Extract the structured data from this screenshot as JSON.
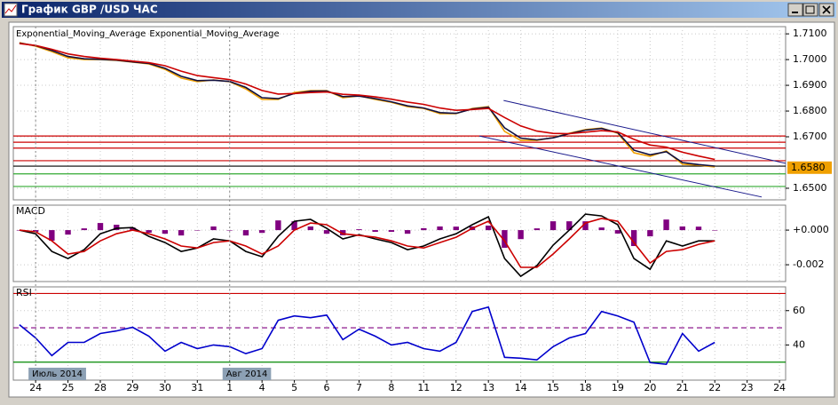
{
  "window": {
    "title": "График GBP /USD ЧАС"
  },
  "chart_data": [
    {
      "type": "line",
      "x": [
        -0.5,
        0,
        0.5,
        1,
        1.5,
        2,
        2.5,
        3,
        3.5,
        4,
        4.5,
        5,
        5.5,
        6,
        6.5,
        7,
        7.5,
        8,
        8.5,
        9,
        9.5,
        10,
        10.5,
        11,
        11.5,
        12,
        12.5,
        13,
        13.5,
        14,
        14.5,
        15,
        15.5,
        16,
        16.5,
        17,
        17.5,
        18,
        18.5,
        19,
        19.5,
        20,
        20.5,
        21
      ],
      "xlim": [
        -0.69,
        23.19
      ],
      "ylim": [
        1.6455,
        1.7128
      ],
      "yticks": [
        {
          "value": 1.71,
          "label": "1.7100"
        },
        {
          "value": 1.7,
          "label": "1.7000"
        },
        {
          "value": 1.69,
          "label": "1.6900"
        },
        {
          "value": 1.68,
          "label": "1.6800"
        },
        {
          "value": 1.67,
          "label": "1.6700"
        },
        {
          "value": 1.65,
          "label": "1.6500"
        }
      ],
      "grid": true,
      "series": [
        {
          "color": "#f0a000",
          "values": [
            1.7066,
            1.7052,
            1.7031,
            1.7007,
            1.7,
            1.7,
            1.6997,
            1.699,
            1.6983,
            1.6962,
            1.6928,
            1.6914,
            1.6921,
            1.6914,
            1.6886,
            1.6845,
            1.6845,
            1.6872,
            1.6879,
            1.6879,
            1.6852,
            1.6859,
            1.6845,
            1.6834,
            1.6817,
            1.681,
            1.679,
            1.679,
            1.681,
            1.6817,
            1.6721,
            1.6686,
            1.6686,
            1.6697,
            1.6714,
            1.6728,
            1.6734,
            1.6714,
            1.6638,
            1.6624,
            1.6645,
            1.6593,
            1.659,
            1.6583
          ]
        },
        {
          "name": "Exponential_Moving_Average",
          "color": "#101040",
          "values": [
            1.7064,
            1.7054,
            1.7035,
            1.7012,
            1.7003,
            1.7001,
            1.6998,
            1.6991,
            1.6985,
            1.6966,
            1.6935,
            1.6918,
            1.692,
            1.6915,
            1.6892,
            1.6852,
            1.6848,
            1.6868,
            1.6877,
            1.6878,
            1.6856,
            1.6858,
            1.6848,
            1.6836,
            1.682,
            1.6812,
            1.6794,
            1.6791,
            1.6808,
            1.6815,
            1.6735,
            1.6695,
            1.6688,
            1.6696,
            1.6712,
            1.6726,
            1.6732,
            1.6716,
            1.6648,
            1.663,
            1.6642,
            1.66,
            1.6592,
            1.6586
          ]
        },
        {
          "name": "Exponential_Moving_Average",
          "color": "#cc0000",
          "values": [
            1.7062,
            1.7055,
            1.704,
            1.7022,
            1.7012,
            1.7005,
            1.7,
            1.6994,
            1.6988,
            1.6976,
            1.6955,
            1.6938,
            1.693,
            1.6922,
            1.6905,
            1.688,
            1.6866,
            1.6868,
            1.6872,
            1.6874,
            1.6865,
            1.6862,
            1.6855,
            1.6846,
            1.6835,
            1.6826,
            1.6812,
            1.6803,
            1.6806,
            1.681,
            1.6775,
            1.6742,
            1.6722,
            1.6713,
            1.6712,
            1.6718,
            1.6724,
            1.6719,
            1.669,
            1.6668,
            1.666,
            1.664,
            1.6625,
            1.6612
          ]
        }
      ],
      "levels": [
        {
          "value": 1.6703,
          "color": "#cc0000"
        },
        {
          "value": 1.6679,
          "color": "#cc0000"
        },
        {
          "value": 1.6656,
          "color": "#cc0000"
        },
        {
          "value": 1.6607,
          "color": "#cc0000"
        },
        {
          "value": 1.6586,
          "color": "#000000"
        },
        {
          "value": 1.6556,
          "color": "#33aa33"
        },
        {
          "value": 1.6507,
          "color": "#33aa33"
        }
      ],
      "trendlines": [
        {
          "x": [
            14.47,
            23.19
          ],
          "values": [
            1.6841,
            1.6597
          ],
          "color": "#1a1a8c"
        },
        {
          "x": [
            13.72,
            22.45
          ],
          "values": [
            1.6703,
            1.6466
          ],
          "color": "#1a1a8c"
        }
      ],
      "last_price": {
        "value": 1.658,
        "label": "1.6580",
        "color": "#f0a000"
      }
    },
    {
      "type": "line",
      "title": "MACD",
      "x": [
        -0.5,
        0,
        0.5,
        1,
        1.5,
        2,
        2.5,
        3,
        3.5,
        4,
        4.5,
        5,
        5.5,
        6,
        6.5,
        7,
        7.5,
        8,
        8.5,
        9,
        9.5,
        10,
        10.5,
        11,
        11.5,
        12,
        12.5,
        13,
        13.5,
        14,
        14.5,
        15,
        15.5,
        16,
        16.5,
        17,
        17.5,
        18,
        18.5,
        19,
        19.5,
        20,
        20.5,
        21
      ],
      "xlim": [
        -0.69,
        23.19
      ],
      "ylim": [
        -0.00297,
        0.00144
      ],
      "yticks": [
        {
          "value": 0,
          "label": "+0.000"
        },
        {
          "value": -0.002,
          "label": "-0.002"
        }
      ],
      "grid": true,
      "series": [
        {
          "type": "bar",
          "color": "#800080",
          "values": [
            0,
            -0.00011,
            -0.00061,
            -0.00026,
            0.0001,
            0.00041,
            0.00031,
            0.00015,
            -0.00015,
            -0.00021,
            -0.00031,
            0,
            0.00021,
            0,
            -0.00031,
            -0.00016,
            0.00056,
            0.00051,
            0.00021,
            -0.00021,
            -0.0003,
            5e-05,
            -0.0001,
            -0.0001,
            -0.00021,
            0.00011,
            0.00021,
            0.0002,
            0.00021,
            0.00026,
            -0.00102,
            -0.00052,
            0.0001,
            0.00051,
            0.00051,
            0.00051,
            0.00015,
            -0.0002,
            -0.00092,
            -0.00036,
            0.00061,
            0.00021,
            0.0002,
            0
          ]
        },
        {
          "color": "#000000",
          "values": [
            0,
            -0.00021,
            -0.00123,
            -0.00164,
            -0.00113,
            -0.00021,
            0.0001,
            0.00015,
            -0.00036,
            -0.00072,
            -0.00123,
            -0.00103,
            -0.00051,
            -0.00062,
            -0.00123,
            -0.00154,
            -0.00036,
            0.00051,
            0.00062,
            0.0001,
            -0.00051,
            -0.00026,
            -0.00051,
            -0.00072,
            -0.00113,
            -0.00092,
            -0.00051,
            -0.00021,
            0.00031,
            0.00077,
            -0.00164,
            -0.00267,
            -0.00205,
            -0.00087,
            0,
            0.00092,
            0.00082,
            0.00031,
            -0.00164,
            -0.00226,
            -0.00062,
            -0.00092,
            -0.00062,
            -0.00062
          ]
        },
        {
          "color": "#cc0000",
          "values": [
            0,
            -0.0001,
            -0.00062,
            -0.00138,
            -0.00123,
            -0.00062,
            -0.00021,
            0,
            -0.00021,
            -0.00051,
            -0.00092,
            -0.00103,
            -0.00072,
            -0.00062,
            -0.00092,
            -0.00138,
            -0.00092,
            0,
            0.00041,
            0.00031,
            -0.00021,
            -0.00031,
            -0.00041,
            -0.00062,
            -0.00092,
            -0.00103,
            -0.00072,
            -0.00041,
            0.0001,
            0.00051,
            -0.00062,
            -0.00215,
            -0.00215,
            -0.00138,
            -0.00051,
            0.00041,
            0.00067,
            0.00051,
            -0.00072,
            -0.0019,
            -0.00123,
            -0.00113,
            -0.00082,
            -0.00062
          ]
        }
      ]
    },
    {
      "type": "line",
      "title": "RSI",
      "x": [
        -0.5,
        0,
        0.5,
        1,
        1.5,
        2,
        2.5,
        3,
        3.5,
        4,
        4.5,
        5,
        5.5,
        6,
        6.5,
        7,
        7.5,
        8,
        8.5,
        9,
        9.5,
        10,
        10.5,
        11,
        11.5,
        12,
        12.5,
        13,
        13.5,
        14,
        14.5,
        15,
        15.5,
        16,
        16.5,
        17,
        17.5,
        18,
        18.5,
        19,
        19.5,
        20,
        20.5,
        21
      ],
      "xlim": [
        -0.69,
        23.19
      ],
      "ylim": [
        19.5,
        73.85
      ],
      "yticks": [
        60,
        40
      ],
      "xticks": [
        {
          "value": 0,
          "label": "24"
        },
        {
          "value": 1,
          "label": "25"
        },
        {
          "value": 2,
          "label": "28"
        },
        {
          "value": 3,
          "label": "29"
        },
        {
          "value": 4,
          "label": "30"
        },
        {
          "value": 5,
          "label": "31"
        },
        {
          "value": 6,
          "label": "1"
        },
        {
          "value": 7,
          "label": "4"
        },
        {
          "value": 8,
          "label": "5"
        },
        {
          "value": 9,
          "label": "6"
        },
        {
          "value": 10,
          "label": "7"
        },
        {
          "value": 11,
          "label": "8"
        },
        {
          "value": 12,
          "label": "11"
        },
        {
          "value": 13,
          "label": "12"
        },
        {
          "value": 14,
          "label": "13"
        },
        {
          "value": 15,
          "label": "14"
        },
        {
          "value": 16,
          "label": "15"
        },
        {
          "value": 17,
          "label": "18"
        },
        {
          "value": 18,
          "label": "19"
        },
        {
          "value": 19,
          "label": "20"
        },
        {
          "value": 20,
          "label": "21"
        },
        {
          "value": 21,
          "label": "22"
        },
        {
          "value": 22,
          "label": "23"
        },
        {
          "value": 23,
          "label": "24"
        }
      ],
      "grid": true,
      "series": [
        {
          "color": "#0000cc",
          "values": [
            51.8,
            44.1,
            33.8,
            41.5,
            41.5,
            46.7,
            48.2,
            50.3,
            45.1,
            36.4,
            41.5,
            37.9,
            40,
            39,
            34.9,
            37.9,
            54.4,
            56.9,
            55.9,
            57.4,
            43.1,
            49.2,
            45.1,
            40,
            41.5,
            37.9,
            36.4,
            41.5,
            59.5,
            62.1,
            32.8,
            32.3,
            31.3,
            39,
            44.1,
            46.7,
            59.5,
            56.9,
            53.3,
            29.7,
            28.7,
            46.7,
            36.4,
            41.5
          ]
        }
      ],
      "levels": [
        {
          "value": 70,
          "color": "#cc0000"
        },
        {
          "value": 50,
          "color": "#800080",
          "style": "dashed"
        },
        {
          "value": 30,
          "color": "#008800"
        }
      ],
      "period_labels": [
        {
          "value": 0,
          "label": "Июль 2014"
        },
        {
          "value": 6,
          "label": "Авг 2014"
        }
      ]
    }
  ]
}
